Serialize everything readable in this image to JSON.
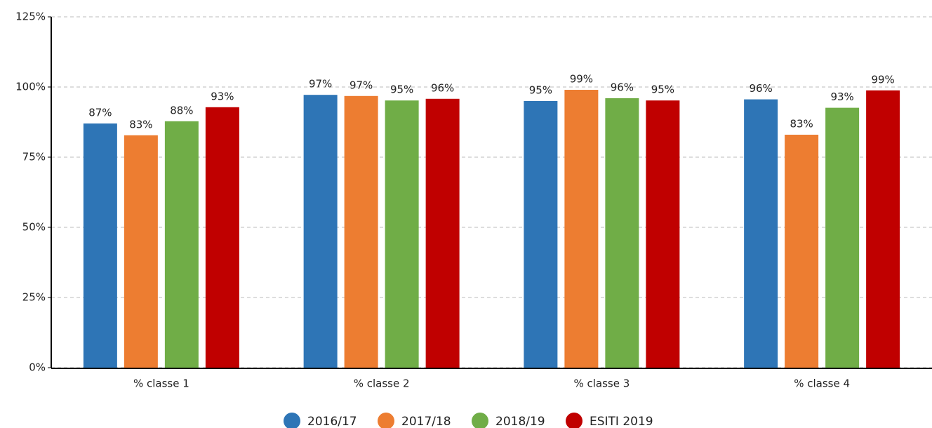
{
  "chart_data": {
    "type": "bar",
    "categories": [
      "% classe 1",
      "% classe 2",
      "% classe 3",
      "% classe 4"
    ],
    "series": [
      {
        "name": "2016/17",
        "color": "#2e75b6",
        "values": [
          87,
          97.2,
          95,
          95.6
        ],
        "value_labels": [
          "87%",
          "97%",
          "95%",
          "96%"
        ]
      },
      {
        "name": "2017/18",
        "color": "#ed7d31",
        "values": [
          82.8,
          96.8,
          99,
          83
        ],
        "value_labels": [
          "83%",
          "97%",
          "99%",
          "83%"
        ]
      },
      {
        "name": "2018/19",
        "color": "#70ad47",
        "values": [
          87.8,
          95.2,
          96,
          92.6
        ],
        "value_labels": [
          "88%",
          "95%",
          "96%",
          "93%"
        ]
      },
      {
        "name": "ESITI 2019",
        "color": "#c00000",
        "values": [
          92.8,
          95.8,
          95.2,
          98.8
        ],
        "value_labels": [
          "93%",
          "96%",
          "95%",
          "99%"
        ]
      }
    ],
    "ylim": [
      0,
      125
    ],
    "yticks": [
      {
        "value": 0,
        "label": "0%"
      },
      {
        "value": 25,
        "label": "25%"
      },
      {
        "value": 50,
        "label": "50%"
      },
      {
        "value": 75,
        "label": "75%"
      },
      {
        "value": 100,
        "label": "100%"
      },
      {
        "value": 125,
        "label": "125%"
      }
    ],
    "grid": true,
    "legend": "bottom"
  }
}
